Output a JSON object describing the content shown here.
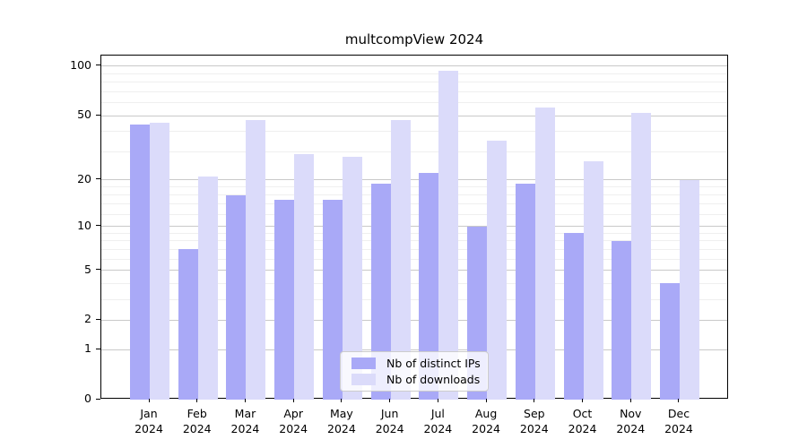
{
  "title": "multcompView 2024",
  "chart_data": {
    "type": "bar",
    "title": "multcompView 2024",
    "categories": [
      "Jan",
      "Feb",
      "Mar",
      "Apr",
      "May",
      "Jun",
      "Jul",
      "Aug",
      "Sep",
      "Oct",
      "Nov",
      "Dec"
    ],
    "x_year": "2024",
    "series": [
      {
        "name": "Nb of distinct IPs",
        "color": "#a9a9f7",
        "values": [
          44,
          7,
          16,
          15,
          15,
          19,
          22,
          10,
          19,
          9,
          8,
          4
        ]
      },
      {
        "name": "Nb of downloads",
        "color": "#dbdbfa",
        "values": [
          45,
          21,
          47,
          29,
          28,
          47,
          94,
          35,
          56,
          26,
          52,
          20
        ]
      }
    ],
    "yscale": "log1p",
    "y_ticks": [
      0,
      1,
      2,
      5,
      10,
      20,
      50,
      100
    ],
    "y_minor_ticks": [
      3,
      4,
      6,
      7,
      8,
      9,
      12,
      14,
      16,
      18,
      30,
      40,
      60,
      70,
      80,
      90
    ],
    "ylim": [
      0,
      115
    ],
    "grid": "horizontal",
    "legend_position": "bottom-center"
  }
}
